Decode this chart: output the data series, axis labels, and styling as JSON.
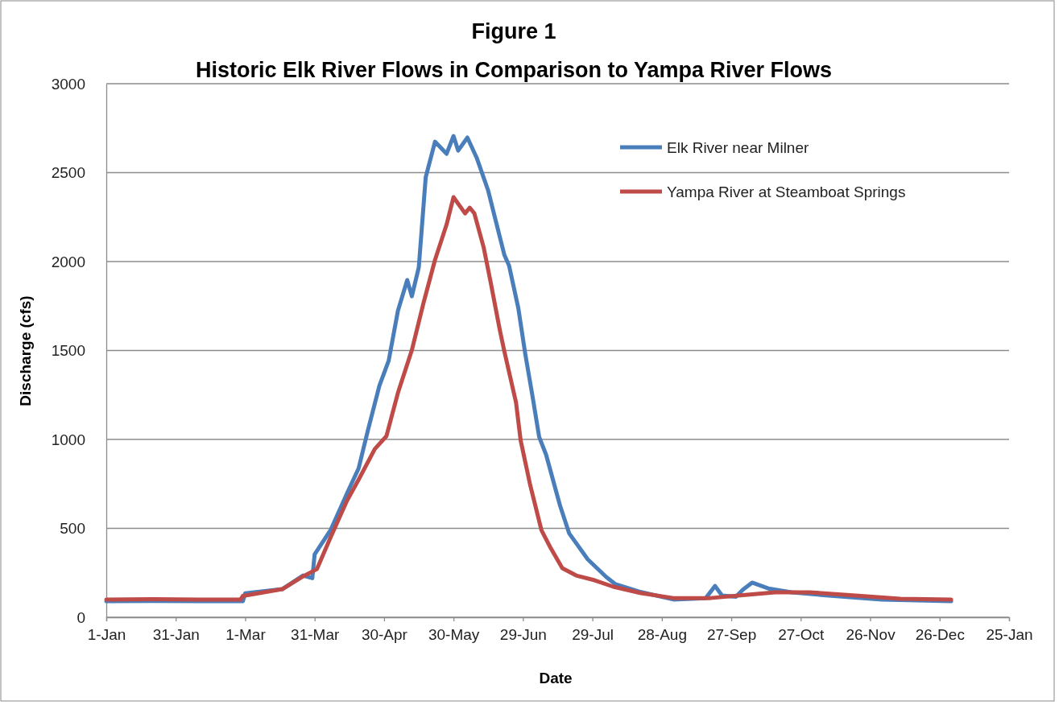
{
  "chart_data": {
    "type": "line",
    "title": "Figure 1",
    "subtitle": "Historic Elk River Flows in Comparison to Yampa River Flows",
    "xlabel": "Date",
    "ylabel": "Discharge (cfs)",
    "xlim": [
      "2000-01-01",
      "2001-01-25"
    ],
    "xticks": [
      {
        "value": "2000-01-01",
        "label": "1-Jan"
      },
      {
        "value": "2000-01-31",
        "label": "31-Jan"
      },
      {
        "value": "2000-03-01",
        "label": "1-Mar"
      },
      {
        "value": "2000-03-31",
        "label": "31-Mar"
      },
      {
        "value": "2000-04-30",
        "label": "30-Apr"
      },
      {
        "value": "2000-05-30",
        "label": "30-May"
      },
      {
        "value": "2000-06-29",
        "label": "29-Jun"
      },
      {
        "value": "2000-07-29",
        "label": "29-Jul"
      },
      {
        "value": "2000-08-28",
        "label": "28-Aug"
      },
      {
        "value": "2000-09-27",
        "label": "27-Sep"
      },
      {
        "value": "2000-10-27",
        "label": "27-Oct"
      },
      {
        "value": "2000-11-26",
        "label": "26-Nov"
      },
      {
        "value": "2000-12-26",
        "label": "26-Dec"
      },
      {
        "value": "2001-01-25",
        "label": "25-Jan"
      }
    ],
    "ylim": [
      0,
      3000
    ],
    "yticks": [
      0,
      500,
      1000,
      1500,
      2000,
      2500,
      3000
    ],
    "grid": "y",
    "legend": "top right",
    "line_style": "solid",
    "marker": "none",
    "series": [
      {
        "name": "Elk River near Milner",
        "color": "#4a7ebb",
        "x": [
          "2000-01-01",
          "2000-01-21",
          "2000-02-10",
          "2000-02-28",
          "2000-02-29",
          "2000-03-01",
          "2000-03-17",
          "2000-03-26",
          "2000-03-30",
          "2000-03-31",
          "2000-04-07",
          "2000-04-14",
          "2000-04-19",
          "2000-04-23",
          "2000-04-28",
          "2000-05-02",
          "2000-05-06",
          "2000-05-10",
          "2000-05-12",
          "2000-05-15",
          "2000-05-18",
          "2000-05-22",
          "2000-05-27",
          "2000-05-30",
          "2000-06-01",
          "2000-06-05",
          "2000-06-09",
          "2000-06-14",
          "2000-06-16",
          "2000-06-21",
          "2000-06-23",
          "2000-06-27",
          "2000-06-30",
          "2000-07-03",
          "2000-07-06",
          "2000-07-09",
          "2000-07-15",
          "2000-07-19",
          "2000-07-27",
          "2000-08-04",
          "2000-08-08",
          "2000-08-18",
          "2000-09-02",
          "2000-09-16",
          "2000-09-20",
          "2000-09-23",
          "2000-09-29",
          "2000-10-02",
          "2000-10-06",
          "2000-10-13",
          "2000-10-23",
          "2000-11-08",
          "2000-12-01",
          "2000-12-31"
        ],
        "values": [
          90,
          92,
          90,
          90,
          90,
          135,
          158,
          235,
          220,
          353,
          493,
          697,
          837,
          1050,
          1303,
          1443,
          1724,
          1896,
          1805,
          1968,
          2475,
          2674,
          2606,
          2706,
          2624,
          2697,
          2584,
          2398,
          2294,
          2036,
          1977,
          1738,
          1480,
          1253,
          1014,
          914,
          629,
          471,
          326,
          226,
          186,
          145,
          100,
          108,
          176,
          122,
          115,
          155,
          195,
          162,
          140,
          122,
          100,
          90
        ]
      },
      {
        "name": "Yampa River at Steamboat Springs",
        "color": "#be4b48",
        "x": [
          "2000-01-01",
          "2000-01-21",
          "2000-02-10",
          "2000-02-28",
          "2000-02-29",
          "2000-03-17",
          "2000-03-26",
          "2000-04-01",
          "2000-04-07",
          "2000-04-14",
          "2000-04-19",
          "2000-04-26",
          "2000-05-01",
          "2000-05-06",
          "2000-05-12",
          "2000-05-17",
          "2000-05-22",
          "2000-05-27",
          "2000-05-30",
          "2000-06-04",
          "2000-06-06",
          "2000-06-08",
          "2000-06-12",
          "2000-06-15",
          "2000-06-19",
          "2000-06-21",
          "2000-06-26",
          "2000-06-28",
          "2000-07-02",
          "2000-07-07",
          "2000-07-11",
          "2000-07-16",
          "2000-07-22",
          "2000-07-30",
          "2000-08-07",
          "2000-08-19",
          "2000-09-02",
          "2000-09-18",
          "2000-09-30",
          "2000-10-16",
          "2000-10-31",
          "2000-11-16",
          "2000-12-09",
          "2000-12-31"
        ],
        "values": [
          100,
          102,
          100,
          100,
          120,
          158,
          230,
          271,
          452,
          656,
          774,
          946,
          1018,
          1262,
          1502,
          1765,
          2009,
          2208,
          2362,
          2271,
          2303,
          2271,
          2081,
          1887,
          1615,
          1493,
          1208,
          995,
          751,
          489,
          389,
          276,
          235,
          208,
          172,
          136,
          108,
          108,
          122,
          140,
          140,
          126,
          104,
          100
        ]
      }
    ]
  }
}
